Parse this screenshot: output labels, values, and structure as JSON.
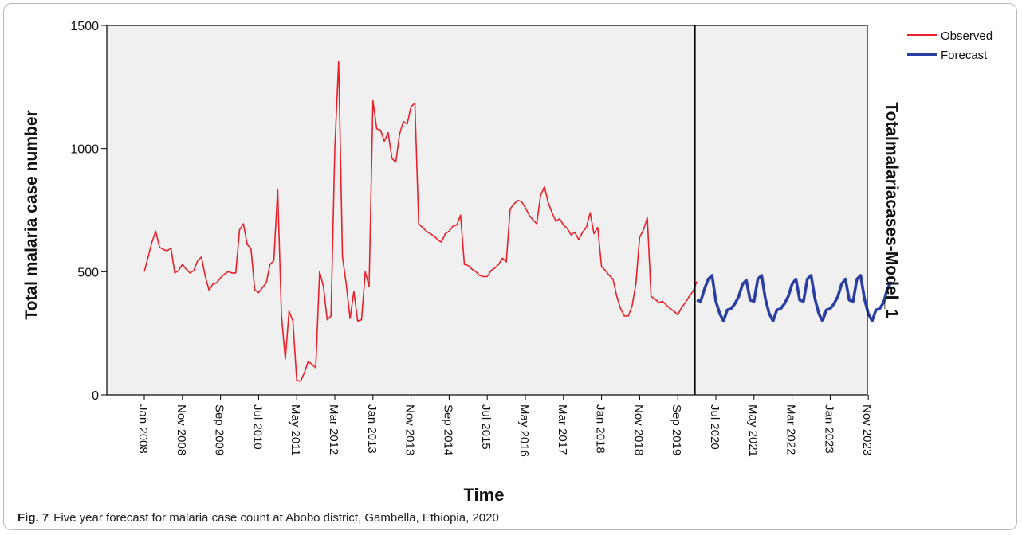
{
  "figure": {
    "label": "Fig. 7",
    "caption": "Five year forecast for malaria case count at Abobo district, Gambella, Ethiopia, 2020"
  },
  "colors": {
    "observed": "#e8202a",
    "forecast": "#2b3fa3",
    "plot_bg": "#f0f0f0",
    "frame": "#000000"
  },
  "chart_data": {
    "type": "line",
    "xlabel": "Time",
    "ylabel": "Total malaria case number",
    "right_label": "Totalmalariacases-Model_1",
    "ylim": [
      0,
      1500
    ],
    "y_ticks": [
      0,
      500,
      1000,
      1500
    ],
    "x_ticks": [
      "Jan 2008",
      "Nov 2008",
      "Sep 2009",
      "Jul 2010",
      "May 2011",
      "Mar 2012",
      "Jan 2013",
      "Nov 2013",
      "Sep 2014",
      "Jul 2015",
      "May 2016",
      "Mar 2017",
      "Jan 2018",
      "Nov 2018",
      "Sep 2019",
      "Jul 2020",
      "May 2021",
      "Mar 2022",
      "Jan 2023",
      "Nov 2023"
    ],
    "forecast_start": "Feb 2020",
    "legend_position": "top-right",
    "grid": false,
    "series": [
      {
        "name": "Observed",
        "start": "Jan 2008",
        "values": [
          500,
          560,
          620,
          665,
          600,
          590,
          585,
          595,
          495,
          505,
          530,
          510,
          495,
          505,
          545,
          560,
          480,
          425,
          450,
          455,
          475,
          490,
          500,
          495,
          495,
          670,
          695,
          610,
          595,
          425,
          415,
          435,
          455,
          530,
          545,
          835,
          320,
          145,
          340,
          300,
          60,
          55,
          90,
          135,
          125,
          110,
          500,
          440,
          305,
          320,
          1000,
          1355,
          560,
          450,
          310,
          420,
          300,
          305,
          500,
          440,
          1195,
          1080,
          1075,
          1030,
          1065,
          960,
          945,
          1060,
          1110,
          1100,
          1170,
          1185,
          695,
          680,
          665,
          655,
          645,
          630,
          620,
          655,
          665,
          685,
          690,
          730,
          530,
          525,
          510,
          500,
          485,
          480,
          480,
          505,
          515,
          530,
          555,
          540,
          755,
          775,
          790,
          785,
          760,
          730,
          710,
          695,
          810,
          845,
          780,
          740,
          705,
          715,
          690,
          675,
          650,
          660,
          630,
          660,
          680,
          740,
          655,
          680,
          520,
          505,
          485,
          470,
          400,
          350,
          320,
          320,
          360,
          450,
          640,
          670,
          720,
          400,
          390,
          375,
          380,
          365,
          350,
          340,
          325,
          355,
          375,
          400,
          420,
          460
        ]
      },
      {
        "name": "Forecast",
        "start": "Feb 2020",
        "values": [
          385,
          380,
          430,
          470,
          485,
          380,
          330,
          300,
          345,
          350,
          370,
          400,
          450,
          465,
          385,
          380,
          470,
          485,
          390,
          330,
          300,
          345,
          350,
          370,
          400,
          450,
          470,
          385,
          380,
          470,
          485,
          390,
          330,
          300,
          345,
          350,
          370,
          400,
          450,
          470,
          385,
          380,
          470,
          485,
          390,
          330,
          300,
          345,
          350,
          375,
          430,
          460
        ]
      }
    ]
  }
}
